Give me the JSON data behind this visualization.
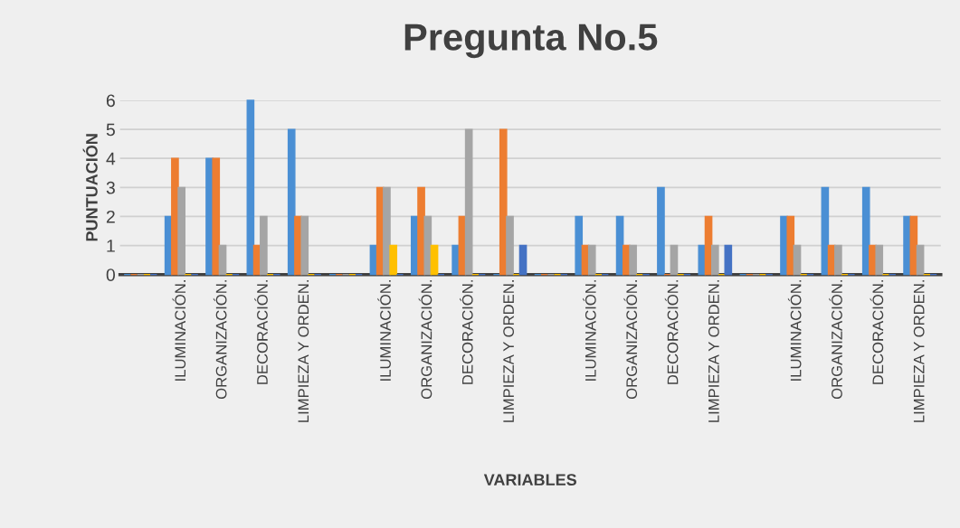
{
  "chart_data": {
    "type": "bar",
    "title": "Pregunta No.5",
    "xlabel": "VARIABLES",
    "ylabel": "PUNTUACIÓN",
    "categories": [
      null,
      "ILUMINACIÓN.",
      "ORGANIZACIÓN.",
      "DECORACIÓN.",
      "LIMPIEZA Y ORDEN.",
      null,
      "ILUMINACIÓN.",
      "ORGANIZACIÓN.",
      "DECORACIÓN.",
      "LIMPIEZA Y ORDEN.",
      null,
      "ILUMINACIÓN.",
      "ORGANIZACIÓN.",
      "DECORACIÓN.",
      "LIMPIEZA Y ORDEN.",
      null,
      "ILUMINACIÓN.",
      "ORGANIZACIÓN.",
      "DECORACIÓN.",
      "LIMPIEZA Y ORDEN."
    ],
    "series": [
      {
        "color": "#4a8fd4",
        "values": [
          0,
          2,
          4,
          6,
          5,
          0,
          1,
          2,
          1,
          0,
          0,
          2,
          2,
          3,
          1,
          0,
          2,
          3,
          3,
          2
        ]
      },
      {
        "color": "#ed7d31",
        "values": [
          0,
          4,
          4,
          1,
          2,
          0,
          3,
          3,
          2,
          5,
          0,
          1,
          1,
          0,
          2,
          0,
          2,
          1,
          1,
          2
        ]
      },
      {
        "color": "#a5a5a5",
        "values": [
          0,
          3,
          1,
          2,
          2,
          0,
          3,
          2,
          5,
          2,
          0,
          1,
          1,
          1,
          1,
          0,
          1,
          1,
          1,
          1
        ]
      },
      {
        "color": "#ffc000",
        "values": [
          0,
          0,
          0,
          0,
          0,
          0,
          1,
          1,
          0,
          0,
          0,
          0,
          0,
          0,
          0,
          0,
          0,
          0,
          0,
          0
        ]
      },
      {
        "color": "#4472c4",
        "values": [
          0,
          0,
          0,
          0,
          0,
          0,
          0,
          0,
          0,
          1,
          0,
          0,
          0,
          0,
          1,
          0,
          0,
          0,
          0,
          0
        ]
      }
    ],
    "ylim": [
      0,
      6
    ],
    "yticks": [
      0,
      1,
      2,
      3,
      4,
      5,
      6
    ],
    "grid": "y"
  }
}
